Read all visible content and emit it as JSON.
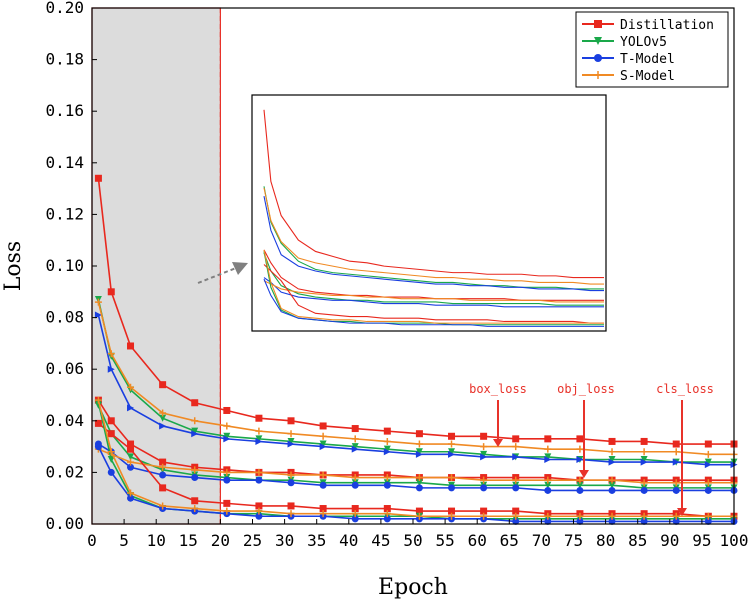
{
  "chart_data": {
    "type": "line",
    "xlabel": "Epoch",
    "ylabel": "Loss",
    "xlim": [
      0,
      100
    ],
    "ylim": [
      0,
      0.2
    ],
    "x_ticks": [
      "0",
      "5",
      "10",
      "15",
      "20",
      "25",
      "30",
      "35",
      "40",
      "45",
      "50",
      "55",
      "60",
      "65",
      "70",
      "75",
      "80",
      "85",
      "90",
      "95",
      "100"
    ],
    "y_ticks": [
      "0.00",
      "0.02",
      "0.04",
      "0.06",
      "0.08",
      "0.10",
      "0.12",
      "0.14",
      "0.16",
      "0.18",
      "0.20"
    ],
    "shaded_region": [
      0,
      20
    ],
    "legend": [
      "Distillation",
      "YOLOv5",
      "T-Model",
      "S-Model"
    ],
    "colors": {
      "Distillation": "#e8281e",
      "YOLOv5": "#1aa84a",
      "T-Model": "#1a3fe0",
      "S-Model": "#f08a24"
    },
    "annotations": [
      "box_loss",
      "obj_loss",
      "cls_loss"
    ],
    "series": [
      {
        "name": "Distillation",
        "loss": "box_loss",
        "x": [
          1,
          3,
          6,
          11,
          16,
          21,
          26,
          31,
          36,
          41,
          46,
          51,
          56,
          61,
          66,
          71,
          76,
          81,
          86,
          91,
          96,
          100
        ],
        "values": [
          0.134,
          0.09,
          0.069,
          0.054,
          0.047,
          0.044,
          0.041,
          0.04,
          0.038,
          0.037,
          0.036,
          0.035,
          0.034,
          0.034,
          0.033,
          0.033,
          0.033,
          0.032,
          0.032,
          0.031,
          0.031,
          0.031
        ]
      },
      {
        "name": "YOLOv5",
        "loss": "box_loss",
        "x": [
          1,
          3,
          6,
          11,
          16,
          21,
          26,
          31,
          36,
          41,
          46,
          51,
          56,
          61,
          66,
          71,
          76,
          81,
          86,
          91,
          96,
          100
        ],
        "values": [
          0.087,
          0.065,
          0.052,
          0.041,
          0.036,
          0.034,
          0.033,
          0.032,
          0.031,
          0.03,
          0.029,
          0.028,
          0.028,
          0.027,
          0.026,
          0.026,
          0.025,
          0.025,
          0.025,
          0.024,
          0.024,
          0.024
        ]
      },
      {
        "name": "T-Model",
        "loss": "box_loss",
        "x": [
          1,
          3,
          6,
          11,
          16,
          21,
          26,
          31,
          36,
          41,
          46,
          51,
          56,
          61,
          66,
          71,
          76,
          81,
          86,
          91,
          96,
          100
        ],
        "values": [
          0.081,
          0.06,
          0.045,
          0.038,
          0.035,
          0.033,
          0.032,
          0.031,
          0.03,
          0.029,
          0.028,
          0.027,
          0.027,
          0.026,
          0.026,
          0.025,
          0.025,
          0.024,
          0.024,
          0.024,
          0.023,
          0.023
        ]
      },
      {
        "name": "S-Model",
        "loss": "box_loss",
        "x": [
          1,
          3,
          6,
          11,
          16,
          21,
          26,
          31,
          36,
          41,
          46,
          51,
          56,
          61,
          66,
          71,
          76,
          81,
          86,
          91,
          96,
          100
        ],
        "values": [
          0.086,
          0.066,
          0.053,
          0.043,
          0.04,
          0.038,
          0.036,
          0.035,
          0.034,
          0.033,
          0.032,
          0.031,
          0.031,
          0.03,
          0.03,
          0.029,
          0.029,
          0.028,
          0.028,
          0.028,
          0.027,
          0.027
        ]
      },
      {
        "name": "Distillation",
        "loss": "obj_loss",
        "x": [
          1,
          3,
          6,
          11,
          16,
          21,
          26,
          31,
          36,
          41,
          46,
          51,
          56,
          61,
          66,
          71,
          76,
          81,
          86,
          91,
          96,
          100
        ],
        "values": [
          0.048,
          0.04,
          0.031,
          0.024,
          0.022,
          0.021,
          0.02,
          0.02,
          0.019,
          0.019,
          0.019,
          0.018,
          0.018,
          0.018,
          0.018,
          0.018,
          0.017,
          0.017,
          0.017,
          0.017,
          0.017,
          0.017
        ]
      },
      {
        "name": "YOLOv5",
        "loss": "obj_loss",
        "x": [
          1,
          3,
          6,
          11,
          16,
          21,
          26,
          31,
          36,
          41,
          46,
          51,
          56,
          61,
          66,
          71,
          76,
          81,
          86,
          91,
          96,
          100
        ],
        "values": [
          0.046,
          0.035,
          0.026,
          0.021,
          0.019,
          0.018,
          0.017,
          0.017,
          0.016,
          0.016,
          0.016,
          0.016,
          0.015,
          0.015,
          0.015,
          0.015,
          0.015,
          0.015,
          0.014,
          0.014,
          0.014,
          0.014
        ]
      },
      {
        "name": "T-Model",
        "loss": "obj_loss",
        "x": [
          1,
          3,
          6,
          11,
          16,
          21,
          26,
          31,
          36,
          41,
          46,
          51,
          56,
          61,
          66,
          71,
          76,
          81,
          86,
          91,
          96,
          100
        ],
        "values": [
          0.031,
          0.028,
          0.022,
          0.019,
          0.018,
          0.017,
          0.017,
          0.016,
          0.015,
          0.015,
          0.015,
          0.014,
          0.014,
          0.014,
          0.014,
          0.013,
          0.013,
          0.013,
          0.013,
          0.013,
          0.013,
          0.013
        ]
      },
      {
        "name": "S-Model",
        "loss": "obj_loss",
        "x": [
          1,
          3,
          6,
          11,
          16,
          21,
          26,
          31,
          36,
          41,
          46,
          51,
          56,
          61,
          66,
          71,
          76,
          81,
          86,
          91,
          96,
          100
        ],
        "values": [
          0.029,
          0.027,
          0.024,
          0.022,
          0.021,
          0.02,
          0.02,
          0.019,
          0.019,
          0.018,
          0.018,
          0.018,
          0.018,
          0.017,
          0.017,
          0.017,
          0.017,
          0.017,
          0.016,
          0.016,
          0.016,
          0.016
        ]
      },
      {
        "name": "Distillation",
        "loss": "cls_loss",
        "x": [
          1,
          3,
          6,
          11,
          16,
          21,
          26,
          31,
          36,
          41,
          46,
          51,
          56,
          61,
          66,
          71,
          76,
          81,
          86,
          91,
          96,
          100
        ],
        "values": [
          0.039,
          0.035,
          0.029,
          0.014,
          0.009,
          0.008,
          0.007,
          0.007,
          0.006,
          0.006,
          0.006,
          0.005,
          0.005,
          0.005,
          0.005,
          0.004,
          0.004,
          0.004,
          0.004,
          0.004,
          0.003,
          0.003
        ]
      },
      {
        "name": "YOLOv5",
        "loss": "cls_loss",
        "x": [
          1,
          3,
          6,
          11,
          16,
          21,
          26,
          31,
          36,
          41,
          46,
          51,
          56,
          61,
          66,
          71,
          76,
          81,
          86,
          91,
          96,
          100
        ],
        "values": [
          0.047,
          0.025,
          0.011,
          0.006,
          0.005,
          0.004,
          0.004,
          0.003,
          0.003,
          0.003,
          0.003,
          0.003,
          0.002,
          0.002,
          0.002,
          0.002,
          0.002,
          0.002,
          0.002,
          0.002,
          0.002,
          0.002
        ]
      },
      {
        "name": "T-Model",
        "loss": "cls_loss",
        "x": [
          1,
          3,
          6,
          11,
          16,
          21,
          26,
          31,
          36,
          41,
          46,
          51,
          56,
          61,
          66,
          71,
          76,
          81,
          86,
          91,
          96,
          100
        ],
        "values": [
          0.03,
          0.02,
          0.01,
          0.006,
          0.005,
          0.004,
          0.003,
          0.003,
          0.003,
          0.002,
          0.002,
          0.002,
          0.002,
          0.002,
          0.001,
          0.001,
          0.001,
          0.001,
          0.001,
          0.001,
          0.001,
          0.001
        ]
      },
      {
        "name": "S-Model",
        "loss": "cls_loss",
        "x": [
          1,
          3,
          6,
          11,
          16,
          21,
          26,
          31,
          36,
          41,
          46,
          51,
          56,
          61,
          66,
          71,
          76,
          81,
          86,
          91,
          96,
          100
        ],
        "values": [
          0.048,
          0.028,
          0.012,
          0.007,
          0.006,
          0.005,
          0.005,
          0.004,
          0.004,
          0.004,
          0.004,
          0.003,
          0.003,
          0.003,
          0.003,
          0.003,
          0.003,
          0.003,
          0.003,
          0.003,
          0.003,
          0.003
        ]
      }
    ]
  }
}
